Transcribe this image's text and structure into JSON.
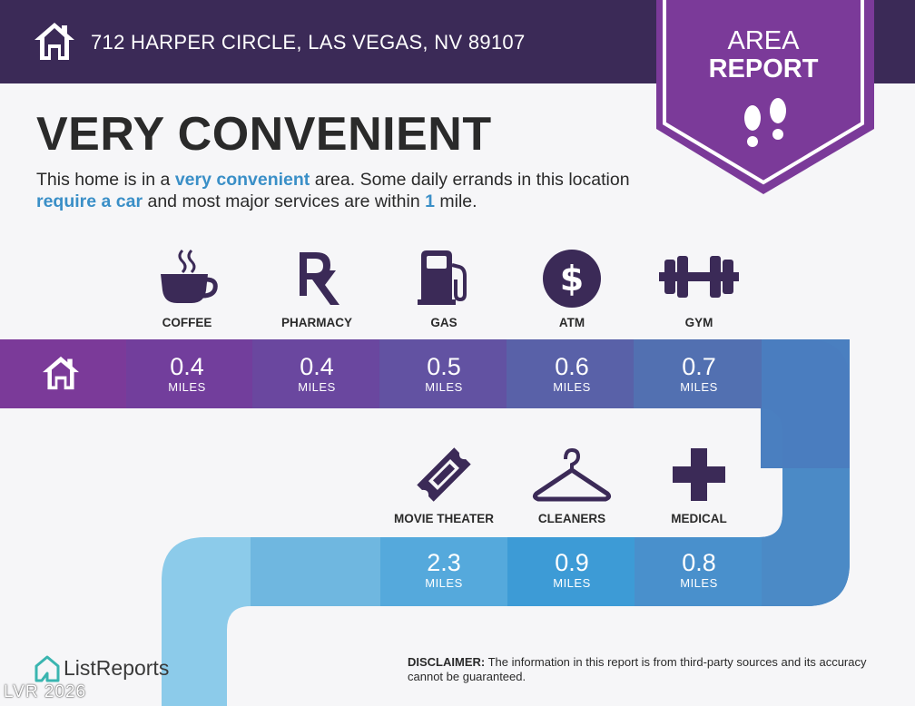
{
  "header": {
    "address": "712 HARPER CIRCLE, LAS VEGAS, NV 89107",
    "home_icon": "house-icon",
    "badge_line1": "AREA",
    "badge_line2": "REPORT",
    "badge_icon": "footprints-icon",
    "colors": {
      "bar": "#3b2a57",
      "badge": "#7b3a99"
    }
  },
  "summary": {
    "title": "VERY CONVENIENT",
    "desc_1": "This home is in a ",
    "desc_hl_1": "very convenient",
    "desc_2": " area. Some daily errands in this location ",
    "desc_hl_2": "require a car",
    "desc_3": " and most major services are within ",
    "desc_hl_3": "1",
    "desc_4": " mile."
  },
  "row1": [
    {
      "label": "COFFEE",
      "distance": "0.4",
      "unit": "MILES",
      "icon": "coffee-cup-icon"
    },
    {
      "label": "PHARMACY",
      "distance": "0.4",
      "unit": "MILES",
      "icon": "rx-icon"
    },
    {
      "label": "GAS",
      "distance": "0.5",
      "unit": "MILES",
      "icon": "gas-pump-icon"
    },
    {
      "label": "ATM",
      "distance": "0.6",
      "unit": "MILES",
      "icon": "dollar-icon"
    },
    {
      "label": "GYM",
      "distance": "0.7",
      "unit": "MILES",
      "icon": "dumbbell-icon"
    }
  ],
  "row2": [
    {
      "label": "MOVIE THEATER",
      "distance": "2.3",
      "unit": "MILES",
      "icon": "ticket-icon"
    },
    {
      "label": "CLEANERS",
      "distance": "0.9",
      "unit": "MILES",
      "icon": "hanger-icon"
    },
    {
      "label": "MEDICAL",
      "distance": "0.8",
      "unit": "MILES",
      "icon": "medical-cross-icon"
    }
  ],
  "footer": {
    "brand": "ListReports",
    "brand_icon": "listreports-logo-icon",
    "disclaimer_label": "DISCLAIMER:",
    "disclaimer_text": " The information in this report is from third-party sources and its accuracy cannot be guaranteed.",
    "watermark": "LVR 2026"
  }
}
